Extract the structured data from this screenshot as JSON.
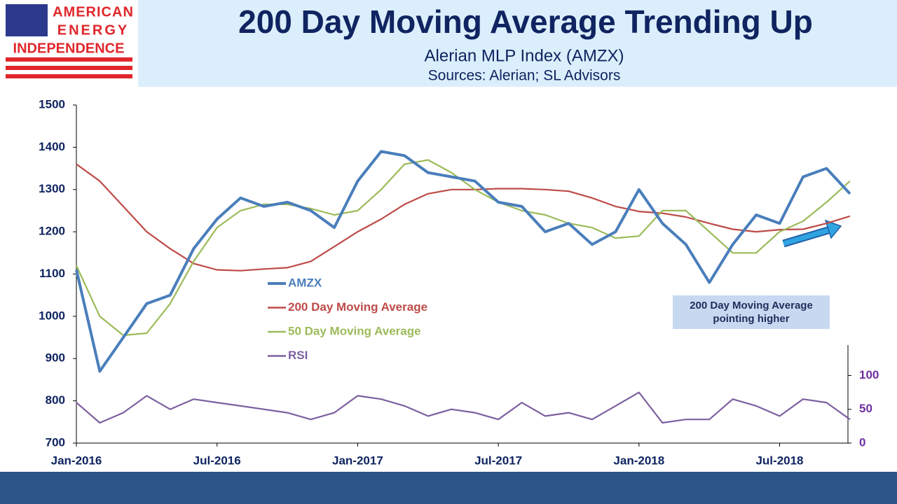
{
  "logo": {
    "lines": [
      "AMERICAN",
      "ENERGY",
      "INDEPENDENCE"
    ]
  },
  "chart_data": {
    "type": "line",
    "title": "200 Day Moving Average Trending Up",
    "subtitle": "Alerian MLP Index (AMZX)",
    "source": "Sources: Alerian; SL Advisors",
    "categories": [
      "Jan-2016",
      null,
      null,
      null,
      null,
      null,
      "Jul-2016",
      null,
      null,
      null,
      null,
      null,
      "Jan-2017",
      null,
      null,
      null,
      null,
      null,
      "Jul-2017",
      null,
      null,
      null,
      null,
      null,
      "Jan-2018",
      null,
      null,
      null,
      null,
      null,
      "Jul-2018",
      null,
      null,
      null
    ],
    "series": [
      {
        "name": "AMZX",
        "color": "#4a7ebb",
        "values": [
          1110,
          870,
          950,
          1030,
          1050,
          1160,
          1230,
          1280,
          1260,
          1270,
          1250,
          1210,
          1320,
          1390,
          1380,
          1340,
          1330,
          1320,
          1270,
          1260,
          1200,
          1220,
          1170,
          1200,
          1300,
          1220,
          1170,
          1080,
          1170,
          1240,
          1220,
          1330,
          1350,
          1290
        ]
      },
      {
        "name": "200 Day Moving Average",
        "color": "#be4b48",
        "values": [
          1360,
          1320,
          1260,
          1200,
          1160,
          1125,
          1110,
          1108,
          1112,
          1115,
          1130,
          1165,
          1200,
          1230,
          1265,
          1290,
          1300,
          1300,
          1302,
          1302,
          1300,
          1296,
          1280,
          1260,
          1248,
          1244,
          1235,
          1220,
          1206,
          1200,
          1205,
          1206,
          1220,
          1237
        ]
      },
      {
        "name": "50 Day Moving Average",
        "color": "#9bbb59",
        "values": [
          1120,
          1000,
          955,
          960,
          1030,
          1130,
          1210,
          1250,
          1265,
          1265,
          1255,
          1240,
          1250,
          1300,
          1360,
          1370,
          1340,
          1300,
          1270,
          1250,
          1240,
          1220,
          1210,
          1185,
          1190,
          1250,
          1250,
          1200,
          1150,
          1150,
          1200,
          1225,
          1270,
          1320
        ]
      },
      {
        "name": "RSI",
        "color": "#7d60a0",
        "axis": "y2",
        "values": [
          60,
          30,
          45,
          70,
          50,
          65,
          60,
          55,
          50,
          45,
          35,
          45,
          70,
          65,
          55,
          40,
          50,
          45,
          35,
          60,
          40,
          45,
          35,
          55,
          75,
          30,
          35,
          35,
          65,
          55,
          40,
          65,
          60,
          35
        ]
      }
    ],
    "ylim": [
      700,
      1500
    ],
    "yticks": [
      700,
      800,
      900,
      1000,
      1100,
      1200,
      1300,
      1400,
      1500
    ],
    "y2lim": [
      0,
      145
    ],
    "y2ticks": [
      0,
      50,
      100
    ],
    "annotation": "200 Day Moving Average pointing higher"
  }
}
